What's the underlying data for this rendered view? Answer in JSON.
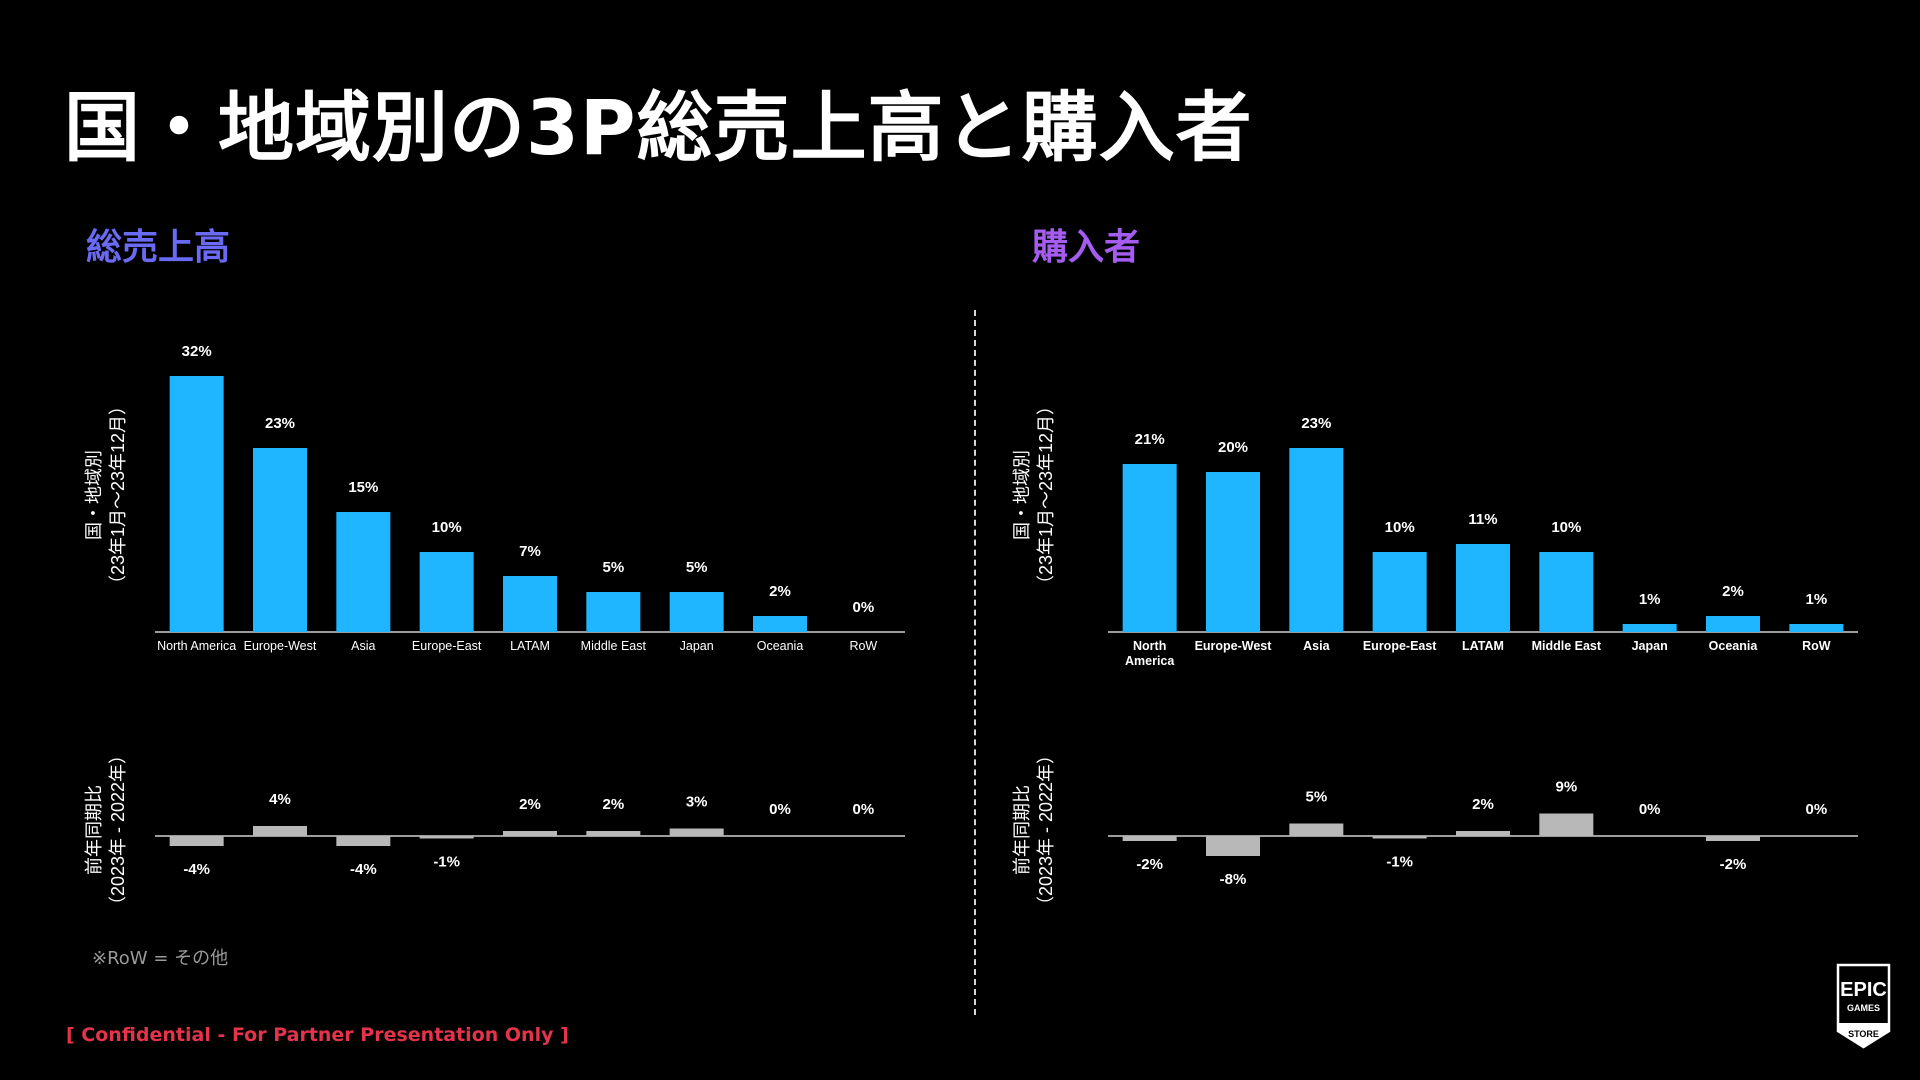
{
  "title": "国・地域別の3P総売上高と購入者",
  "footnote": "※RoW = その他",
  "confidential": "[ Confidential - For Partner Presentation Only ]",
  "logo": {
    "line1": "EPIC",
    "line2": "GAMES",
    "line3": "STORE"
  },
  "colors": {
    "bar": "#1fb6ff",
    "yoy_bar": "#b8b8b8",
    "left_title": "#6a6af4",
    "right_title": "#a55cf0",
    "confidential": "#e5334b"
  },
  "chart_data": [
    {
      "type": "bar",
      "title": "総売上高",
      "ylabel_line1": "国・地域別",
      "ylabel_line2": "（23年1月〜23年12月）",
      "categories": [
        "North America",
        "Europe-West",
        "Asia",
        "Europe-East",
        "LATAM",
        "Middle East",
        "Japan",
        "Oceania",
        "RoW"
      ],
      "values": [
        32,
        23,
        15,
        10,
        7,
        5,
        5,
        2,
        0
      ],
      "labels": [
        "32%",
        "23%",
        "15%",
        "10%",
        "7%",
        "5%",
        "5%",
        "2%",
        "0%"
      ],
      "yoy": {
        "ylabel_line1": "前年同期比",
        "ylabel_line2": "（2023年 - 2022年）",
        "values": [
          -4,
          4,
          -4,
          -1,
          2,
          2,
          3,
          0,
          0
        ],
        "labels": [
          "-4%",
          "4%",
          "-4%",
          "-1%",
          "2%",
          "2%",
          "3%",
          "0%",
          "0%"
        ]
      }
    },
    {
      "type": "bar",
      "title": "購入者",
      "ylabel_line1": "国・地域別",
      "ylabel_line2": "（23年1月〜23年12月）",
      "categories": [
        "North America",
        "Europe-West",
        "Asia",
        "Europe-East",
        "LATAM",
        "Middle East",
        "Japan",
        "Oceania",
        "RoW"
      ],
      "values": [
        21,
        20,
        23,
        10,
        11,
        10,
        1,
        2,
        1
      ],
      "labels": [
        "21%",
        "20%",
        "23%",
        "10%",
        "11%",
        "10%",
        "1%",
        "2%",
        "1%"
      ],
      "yoy": {
        "ylabel_line1": "前年同期比",
        "ylabel_line2": "（2023年 - 2022年）",
        "values": [
          -2,
          -8,
          5,
          -1,
          2,
          9,
          0,
          -2,
          0
        ],
        "labels": [
          "-2%",
          "-8%",
          "5%",
          "-1%",
          "2%",
          "9%",
          "0%",
          "-2%",
          "0%"
        ]
      }
    }
  ]
}
